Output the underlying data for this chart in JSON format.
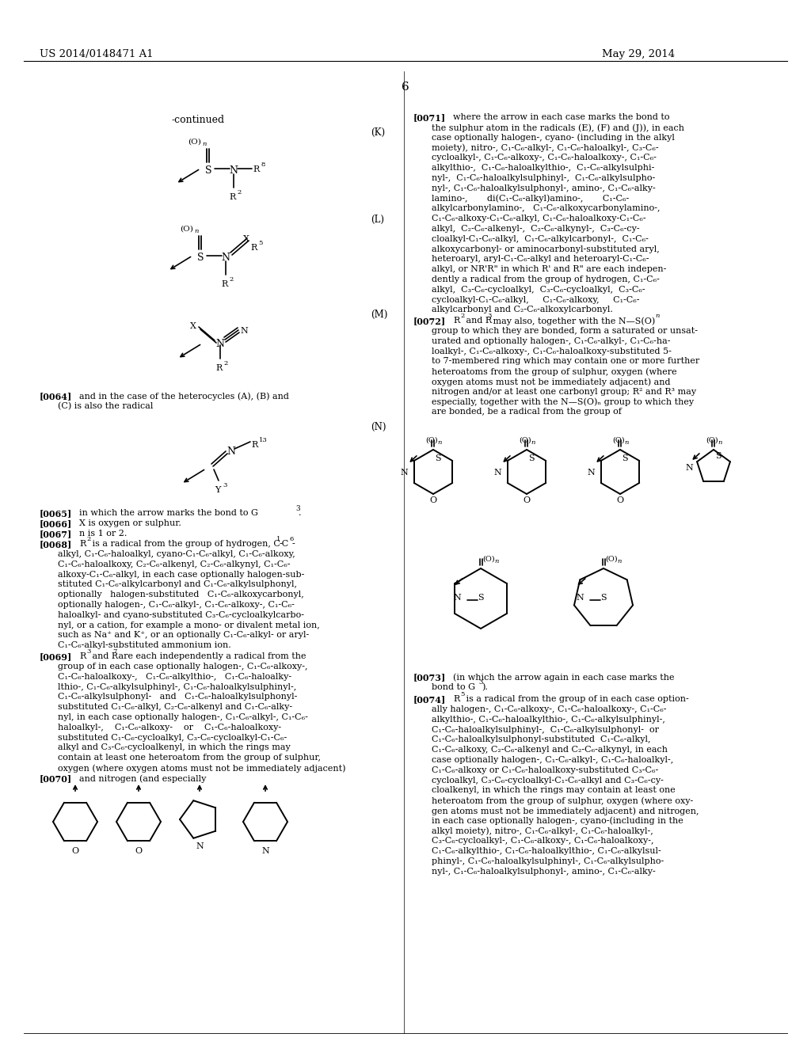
{
  "page_number": "6",
  "patent_number": "US 2014/0148471 A1",
  "patent_date": "May 29, 2014",
  "background_color": "#ffffff",
  "text_color": "#000000"
}
